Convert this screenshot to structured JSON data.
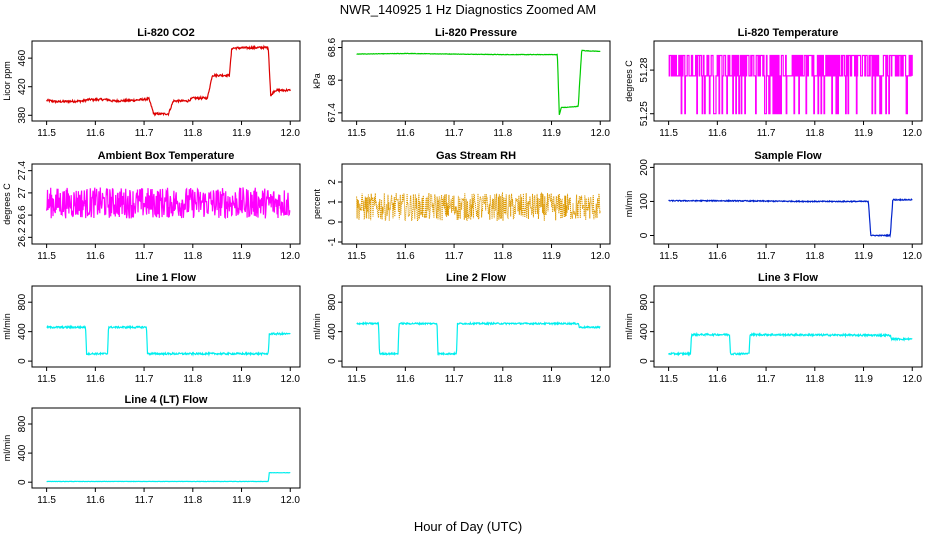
{
  "figure": {
    "title": "NWR_140925  1 Hz Diagnostics Zoomed AM",
    "xlabel": "Hour of Day (UTC)"
  },
  "chart_data": [
    {
      "type": "line",
      "title": "Li-820 CO2",
      "ylabel": "Licor ppm",
      "color": "#dd0000",
      "xlim": [
        11.47,
        12.02
      ],
      "ylim": [
        372,
        484
      ],
      "yticks": [
        380,
        420,
        460
      ],
      "xticks": [
        11.5,
        11.6,
        11.7,
        11.8,
        11.9,
        12.0
      ],
      "x": [
        11.5,
        11.52,
        11.575,
        11.585,
        11.625,
        11.635,
        11.68,
        11.71,
        11.72,
        11.75,
        11.76,
        11.79,
        11.8,
        11.83,
        11.84,
        11.875,
        11.88,
        11.955,
        11.96,
        11.965,
        11.97,
        12.0
      ],
      "y": [
        401,
        399,
        400,
        402,
        402,
        400,
        401,
        403,
        382,
        382,
        400,
        400,
        404,
        404,
        436,
        436,
        474,
        475,
        406,
        413,
        415,
        415
      ],
      "noise": 1.5
    },
    {
      "type": "line",
      "title": "Li-820 Pressure",
      "ylabel": "kPa",
      "color": "#00cc00",
      "xlim": [
        11.47,
        12.02
      ],
      "ylim": [
        67.25,
        68.72
      ],
      "yticks": [
        67.4,
        68.0,
        68.6
      ],
      "xticks": [
        11.5,
        11.6,
        11.7,
        11.8,
        11.9,
        12.0
      ],
      "x": [
        11.5,
        11.6,
        11.7,
        11.8,
        11.9,
        11.912,
        11.916,
        11.92,
        11.93,
        11.955,
        11.958,
        11.962,
        11.97,
        12.0
      ],
      "y": [
        68.48,
        68.49,
        68.48,
        68.47,
        68.47,
        68.47,
        67.36,
        67.5,
        67.5,
        67.52,
        68.0,
        68.55,
        68.54,
        68.53
      ],
      "noise": 0.004
    },
    {
      "type": "line",
      "title": "Li-820 Temperature",
      "ylabel": "degrees C",
      "color": "#ff00ff",
      "xlim": [
        11.47,
        12.02
      ],
      "ylim": [
        51.245,
        51.3
      ],
      "yticks": [
        51.25,
        51.28
      ],
      "xticks": [
        11.5,
        11.6,
        11.7,
        11.8,
        11.9,
        12.0
      ],
      "x": [
        11.5,
        12.0
      ],
      "y": [
        51.27,
        51.27
      ],
      "levels": [
        51.25,
        51.276,
        51.29
      ],
      "dense_fill": true
    },
    {
      "type": "line",
      "title": "Ambient Box Temperature",
      "ylabel": "degrees C",
      "color": "#ff00ff",
      "xlim": [
        11.47,
        12.02
      ],
      "ylim": [
        26.08,
        27.52
      ],
      "yticks": [
        26.2,
        26.6,
        27.0,
        27.4
      ],
      "xticks": [
        11.5,
        11.6,
        11.7,
        11.8,
        11.9,
        12.0
      ],
      "x": [
        11.5,
        12.0
      ],
      "y": [
        26.82,
        26.82
      ],
      "noise": 0.28
    },
    {
      "type": "line",
      "title": "Gas Stream RH",
      "ylabel": "percent",
      "color": "#dd9900",
      "xlim": [
        11.47,
        12.02
      ],
      "ylim": [
        -1.1,
        2.9
      ],
      "yticks": [
        -1,
        0,
        1,
        2
      ],
      "xticks": [
        11.5,
        11.6,
        11.7,
        11.8,
        11.9,
        12.0
      ],
      "x": [
        11.5,
        12.0
      ],
      "y": [
        0.75,
        0.75
      ],
      "noise": 0.7,
      "dotted": true
    },
    {
      "type": "line",
      "title": "Sample Flow",
      "ylabel": "ml/min",
      "color": "#0022cc",
      "xlim": [
        11.47,
        12.02
      ],
      "ylim": [
        -25,
        210
      ],
      "yticks": [
        0,
        100,
        200
      ],
      "xticks": [
        11.5,
        11.6,
        11.7,
        11.8,
        11.9,
        12.0
      ],
      "x": [
        11.5,
        11.6,
        11.7,
        11.8,
        11.91,
        11.915,
        11.92,
        11.955,
        11.96,
        12.0
      ],
      "y": [
        102,
        102,
        101,
        100,
        100,
        0,
        0,
        0,
        105,
        105
      ],
      "noise": 1.5
    },
    {
      "type": "line",
      "title": "Line 1 Flow",
      "ylabel": "ml/min",
      "color": "#00eeee",
      "xlim": [
        11.47,
        12.02
      ],
      "ylim": [
        -80,
        1020
      ],
      "yticks": [
        0,
        400,
        800
      ],
      "xticks": [
        11.5,
        11.6,
        11.7,
        11.8,
        11.9,
        12.0
      ],
      "x": [
        11.5,
        11.58,
        11.582,
        11.625,
        11.627,
        11.705,
        11.707,
        11.955,
        11.957,
        12.0
      ],
      "y": [
        460,
        460,
        100,
        100,
        460,
        460,
        100,
        100,
        370,
        370
      ],
      "noise": 12
    },
    {
      "type": "line",
      "title": "Line 2 Flow",
      "ylabel": "ml/min",
      "color": "#00eeee",
      "xlim": [
        11.47,
        12.02
      ],
      "ylim": [
        -80,
        1020
      ],
      "yticks": [
        0,
        400,
        800
      ],
      "xticks": [
        11.5,
        11.6,
        11.7,
        11.8,
        11.9,
        12.0
      ],
      "x": [
        11.5,
        11.545,
        11.547,
        11.585,
        11.587,
        11.665,
        11.667,
        11.705,
        11.707,
        11.955,
        11.957,
        12.0
      ],
      "y": [
        510,
        510,
        100,
        100,
        510,
        510,
        100,
        100,
        510,
        510,
        460,
        460
      ],
      "noise": 10
    },
    {
      "type": "line",
      "title": "Line 3 Flow",
      "ylabel": "ml/min",
      "color": "#00eeee",
      "xlim": [
        11.47,
        12.02
      ],
      "ylim": [
        -80,
        1020
      ],
      "yticks": [
        0,
        400,
        800
      ],
      "xticks": [
        11.5,
        11.6,
        11.7,
        11.8,
        11.9,
        12.0
      ],
      "x": [
        11.5,
        11.545,
        11.547,
        11.625,
        11.627,
        11.665,
        11.667,
        11.955,
        11.957,
        12.0
      ],
      "y": [
        100,
        100,
        360,
        360,
        100,
        100,
        360,
        350,
        300,
        300
      ],
      "noise": 12
    },
    {
      "type": "line",
      "title": "Line 4 (LT) Flow",
      "ylabel": "ml/min",
      "color": "#00eeee",
      "xlim": [
        11.47,
        12.02
      ],
      "ylim": [
        -80,
        1020
      ],
      "yticks": [
        0,
        400,
        800
      ],
      "xticks": [
        11.5,
        11.6,
        11.7,
        11.8,
        11.9,
        12.0
      ],
      "x": [
        11.5,
        11.955,
        11.957,
        12.0
      ],
      "y": [
        10,
        10,
        130,
        130
      ],
      "noise": 2
    }
  ]
}
